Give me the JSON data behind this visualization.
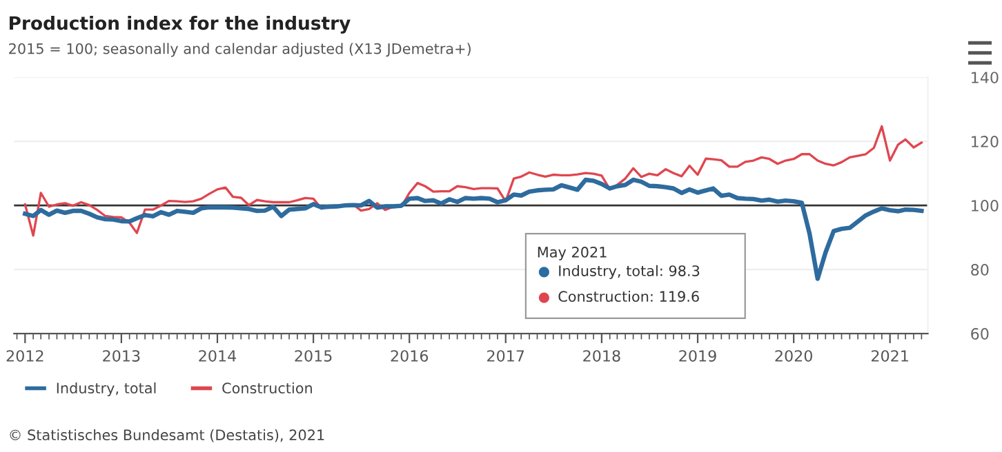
{
  "chart_data": {
    "type": "line",
    "title": "Production index for the industry",
    "subtitle": "2015 = 100; seasonally and calendar adjusted (X13 JDemetra+)",
    "x": [
      "2012-01",
      "2012-02",
      "2012-03",
      "2012-04",
      "2012-05",
      "2012-06",
      "2012-07",
      "2012-08",
      "2012-09",
      "2012-10",
      "2012-11",
      "2012-12",
      "2013-01",
      "2013-02",
      "2013-03",
      "2013-04",
      "2013-05",
      "2013-06",
      "2013-07",
      "2013-08",
      "2013-09",
      "2013-10",
      "2013-11",
      "2013-12",
      "2014-01",
      "2014-02",
      "2014-03",
      "2014-04",
      "2014-05",
      "2014-06",
      "2014-07",
      "2014-08",
      "2014-09",
      "2014-10",
      "2014-11",
      "2014-12",
      "2015-01",
      "2015-02",
      "2015-03",
      "2015-04",
      "2015-05",
      "2015-06",
      "2015-07",
      "2015-08",
      "2015-09",
      "2015-10",
      "2015-11",
      "2015-12",
      "2016-01",
      "2016-02",
      "2016-03",
      "2016-04",
      "2016-05",
      "2016-06",
      "2016-07",
      "2016-08",
      "2016-09",
      "2016-10",
      "2016-11",
      "2016-12",
      "2017-01",
      "2017-02",
      "2017-03",
      "2017-04",
      "2017-05",
      "2017-06",
      "2017-07",
      "2017-08",
      "2017-09",
      "2017-10",
      "2017-11",
      "2017-12",
      "2018-01",
      "2018-02",
      "2018-03",
      "2018-04",
      "2018-05",
      "2018-06",
      "2018-07",
      "2018-08",
      "2018-09",
      "2018-10",
      "2018-11",
      "2018-12",
      "2019-01",
      "2019-02",
      "2019-03",
      "2019-04",
      "2019-05",
      "2019-06",
      "2019-07",
      "2019-08",
      "2019-09",
      "2019-10",
      "2019-11",
      "2019-12",
      "2020-01",
      "2020-02",
      "2020-03",
      "2020-04",
      "2020-05",
      "2020-06",
      "2020-07",
      "2020-08",
      "2020-09",
      "2020-10",
      "2020-11",
      "2020-12",
      "2021-01",
      "2021-02",
      "2021-03",
      "2021-04",
      "2021-05"
    ],
    "series": [
      {
        "name": "Industry, total",
        "color": "#2e6b9e",
        "values": [
          97.4,
          96.7,
          98.6,
          97.1,
          98.4,
          97.7,
          98.3,
          98.3,
          97.4,
          96.3,
          95.7,
          95.6,
          95.1,
          95.0,
          96.0,
          97.0,
          96.6,
          97.9,
          97.1,
          98.3,
          98.0,
          97.7,
          99.1,
          99.4,
          99.4,
          99.4,
          99.3,
          99.1,
          98.9,
          98.3,
          98.4,
          99.6,
          96.7,
          98.7,
          98.9,
          99.1,
          100.4,
          99.4,
          99.6,
          99.7,
          100.0,
          100.1,
          100.0,
          101.4,
          99.3,
          99.7,
          99.7,
          99.9,
          102.1,
          102.3,
          101.4,
          101.6,
          100.6,
          101.9,
          101.1,
          102.3,
          102.1,
          102.3,
          102.1,
          101.0,
          101.6,
          103.4,
          103.1,
          104.3,
          104.7,
          104.9,
          105.0,
          106.3,
          105.6,
          104.9,
          108.0,
          107.7,
          106.7,
          105.3,
          106.0,
          106.4,
          108.0,
          107.4,
          106.1,
          106.0,
          105.7,
          105.3,
          103.9,
          105.0,
          104.0,
          104.7,
          105.3,
          103.0,
          103.4,
          102.3,
          102.1,
          102.0,
          101.5,
          101.8,
          101.2,
          101.5,
          101.3,
          100.8,
          91.3,
          77.1,
          85.3,
          92.0,
          92.7,
          93.0,
          95.0,
          96.9,
          98.1,
          99.1,
          98.5,
          98.2,
          98.7,
          98.6,
          98.3
        ]
      },
      {
        "name": "Construction",
        "color": "#e0464f",
        "values": [
          100.3,
          90.6,
          103.9,
          99.6,
          100.3,
          100.7,
          99.9,
          101.0,
          100.1,
          98.6,
          96.7,
          96.4,
          96.3,
          94.6,
          91.4,
          98.7,
          98.7,
          100.0,
          101.4,
          101.3,
          101.1,
          101.3,
          102.1,
          103.6,
          105.0,
          105.6,
          102.7,
          102.4,
          100.1,
          101.7,
          101.3,
          101.0,
          101.0,
          101.0,
          101.6,
          102.3,
          102.1,
          99.0,
          99.7,
          99.6,
          100.0,
          100.3,
          98.4,
          98.9,
          100.7,
          98.6,
          99.6,
          99.6,
          103.9,
          107.0,
          106.0,
          104.3,
          104.4,
          104.4,
          106.0,
          105.7,
          105.1,
          105.4,
          105.4,
          105.3,
          101.3,
          108.4,
          109.0,
          110.3,
          109.6,
          109.0,
          109.6,
          109.4,
          109.4,
          109.7,
          110.1,
          109.9,
          109.3,
          105.0,
          106.4,
          108.4,
          111.6,
          108.9,
          109.9,
          109.4,
          111.3,
          110.1,
          109.1,
          112.4,
          109.6,
          114.6,
          114.4,
          114.1,
          112.1,
          112.1,
          113.6,
          114.0,
          115.0,
          114.5,
          113.0,
          114.0,
          114.5,
          116.0,
          116.0,
          114.0,
          113.0,
          112.5,
          113.5,
          115.0,
          115.5,
          116.0,
          118.0,
          124.7,
          114.0,
          119.0,
          120.6,
          118.1,
          119.6
        ]
      }
    ],
    "xlim": [
      "2011-11-20",
      "2021-05-25"
    ],
    "xticks": [
      {
        "value": "2012-01-01",
        "label": "2012"
      },
      {
        "value": "2013-01-01",
        "label": "2013"
      },
      {
        "value": "2014-01-01",
        "label": "2014"
      },
      {
        "value": "2015-01-01",
        "label": "2015"
      },
      {
        "value": "2016-01-01",
        "label": "2016"
      },
      {
        "value": "2017-01-01",
        "label": "2017"
      },
      {
        "value": "2018-01-01",
        "label": "2018"
      },
      {
        "value": "2019-01-01",
        "label": "2019"
      },
      {
        "value": "2020-01-01",
        "label": "2020"
      },
      {
        "value": "2021-01-01",
        "label": "2021"
      }
    ],
    "ylim": [
      60,
      140
    ],
    "yticks": [
      60,
      80,
      100,
      120,
      140
    ],
    "ref_lines": [
      {
        "axis": "y",
        "value": 100,
        "color": "#333333"
      }
    ],
    "grid": "y",
    "legend": "bottom",
    "marker": "none",
    "line_style": "solid",
    "annotations": [
      "May 2021",
      "Industry, total: 98.3",
      "Construction: 119.6",
      "© Statistisches Bundesamt (Destatis), 2021"
    ]
  }
}
